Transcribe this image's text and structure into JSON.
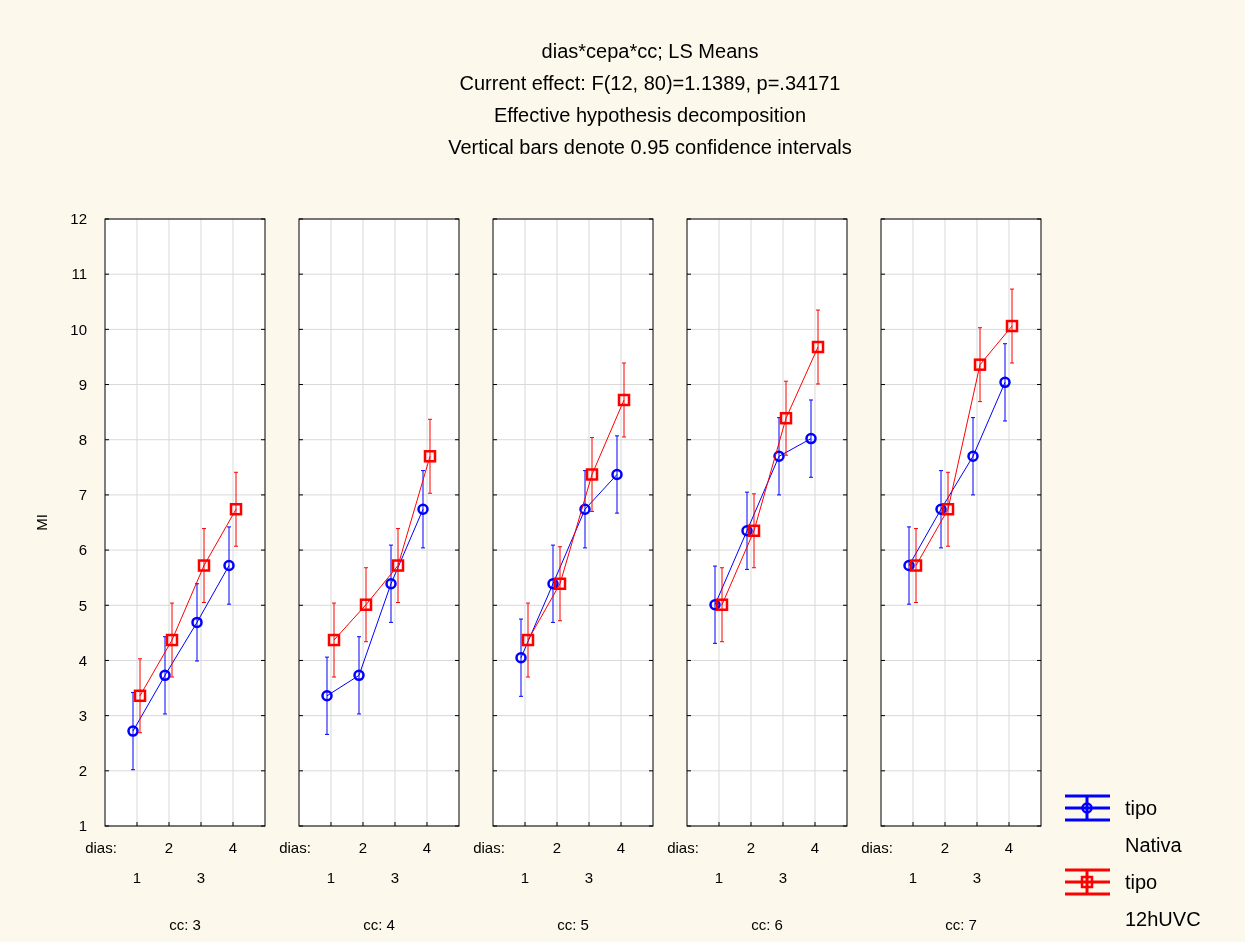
{
  "chart_data": [
    {
      "type": "other",
      "title": "dias*cepa*cc; LS Means",
      "subtitle": "Current effect: F(12, 80)=1.1389, p=.34171\nEffective hypothesis decomposition\nVertical bars denote 0.95 confidence intervals"
    },
    {
      "type": "line",
      "ylabel": "MI",
      "xlabel": "dias:",
      "annotations": [
        "cc: 3"
      ],
      "categories": [
        "1",
        "2",
        "3",
        "4"
      ],
      "ylim": [
        1,
        12
      ],
      "yticks": [
        1,
        2,
        3,
        4,
        5,
        6,
        7,
        8,
        9,
        10,
        11,
        12
      ],
      "grid": true,
      "legend": false,
      "series": [
        {
          "color": "#0000ff",
          "marker": "circle",
          "values": [
            2.72,
            3.73,
            4.69,
            5.72
          ],
          "errors": [
            0.7,
            0.7,
            0.7,
            0.7
          ]
        },
        {
          "color": "#ff0000",
          "marker": "square",
          "values": [
            3.36,
            4.37,
            5.72,
            6.74
          ],
          "errors": [
            0.67,
            0.67,
            0.67,
            0.67
          ]
        }
      ]
    },
    {
      "type": "line",
      "xlabel": "dias:",
      "annotations": [
        "cc: 4"
      ],
      "categories": [
        "1",
        "2",
        "3",
        "4"
      ],
      "ylim": [
        1,
        12
      ],
      "yticks": [
        1,
        2,
        3,
        4,
        5,
        6,
        7,
        8,
        9,
        10,
        11,
        12
      ],
      "grid": true,
      "legend": false,
      "tick_labels": "x",
      "series": [
        {
          "color": "#0000ff",
          "marker": "circle",
          "values": [
            3.36,
            3.73,
            5.39,
            6.74
          ],
          "errors": [
            0.7,
            0.7,
            0.7,
            0.7
          ]
        },
        {
          "color": "#ff0000",
          "marker": "square",
          "values": [
            4.37,
            5.01,
            5.72,
            7.7
          ],
          "errors": [
            0.67,
            0.67,
            0.67,
            0.67
          ]
        }
      ]
    },
    {
      "type": "line",
      "xlabel": "dias:",
      "annotations": [
        "cc: 5"
      ],
      "categories": [
        "1",
        "2",
        "3",
        "4"
      ],
      "ylim": [
        1,
        12
      ],
      "yticks": [
        1,
        2,
        3,
        4,
        5,
        6,
        7,
        8,
        9,
        10,
        11,
        12
      ],
      "grid": true,
      "legend": false,
      "tick_labels": "x",
      "series": [
        {
          "color": "#0000ff",
          "marker": "circle",
          "values": [
            4.05,
            5.39,
            6.74,
            7.37
          ],
          "errors": [
            0.7,
            0.7,
            0.7,
            0.7
          ]
        },
        {
          "color": "#ff0000",
          "marker": "square",
          "values": [
            4.37,
            5.39,
            7.37,
            8.72
          ],
          "errors": [
            0.67,
            0.67,
            0.67,
            0.67
          ]
        }
      ]
    },
    {
      "type": "line",
      "xlabel": "dias:",
      "annotations": [
        "cc: 6"
      ],
      "categories": [
        "1",
        "2",
        "3",
        "4"
      ],
      "ylim": [
        1,
        12
      ],
      "yticks": [
        1,
        2,
        3,
        4,
        5,
        6,
        7,
        8,
        9,
        10,
        11,
        12
      ],
      "grid": true,
      "legend": false,
      "tick_labels": "x",
      "series": [
        {
          "color": "#0000ff",
          "marker": "circle",
          "values": [
            5.01,
            6.35,
            7.7,
            8.02
          ],
          "errors": [
            0.7,
            0.7,
            0.7,
            0.7
          ]
        },
        {
          "color": "#ff0000",
          "marker": "square",
          "values": [
            5.01,
            6.35,
            8.39,
            9.68
          ],
          "errors": [
            0.67,
            0.67,
            0.67,
            0.67
          ]
        }
      ]
    },
    {
      "type": "line",
      "xlabel": "dias:",
      "annotations": [
        "cc: 7"
      ],
      "categories": [
        "1",
        "2",
        "3",
        "4"
      ],
      "ylim": [
        1,
        12
      ],
      "yticks": [
        1,
        2,
        3,
        4,
        5,
        6,
        7,
        8,
        9,
        10,
        11,
        12
      ],
      "grid": true,
      "legend": "bottom right",
      "tick_labels": "x",
      "series": [
        {
          "name": "tipo Nativa",
          "color": "#0000ff",
          "marker": "circle",
          "values": [
            5.72,
            6.74,
            7.7,
            9.04
          ],
          "errors": [
            0.7,
            0.7,
            0.7,
            0.7
          ]
        },
        {
          "name": "tipo 12hUVC",
          "color": "#ff0000",
          "marker": "square",
          "values": [
            5.72,
            6.74,
            9.36,
            10.06
          ],
          "errors": [
            0.67,
            0.67,
            0.67,
            0.67
          ]
        }
      ]
    }
  ]
}
